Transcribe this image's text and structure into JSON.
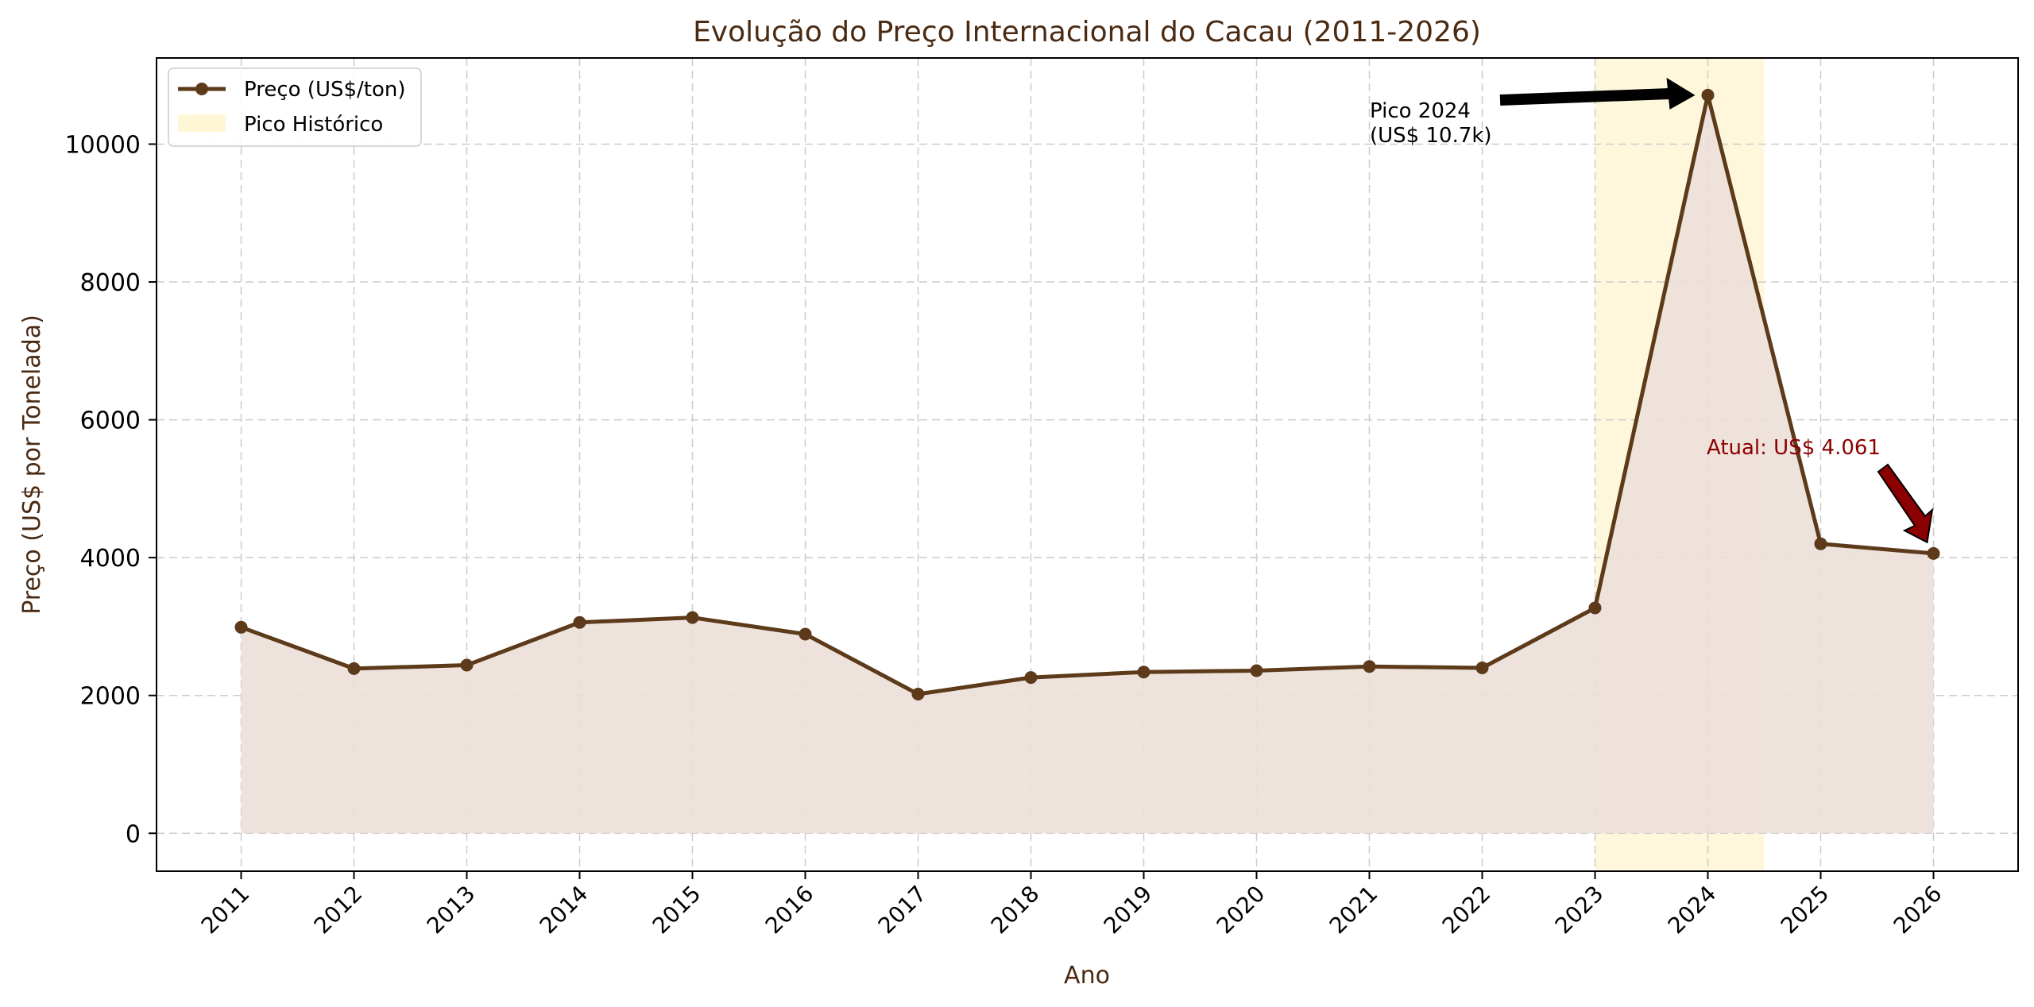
{
  "chart_data": {
    "type": "line",
    "title": "Evolução do Preço Internacional do Cacau (2011-2026)",
    "xlabel": "Ano",
    "ylabel": "Preço (US$ por Tonelada)",
    "x": [
      "2011",
      "2012",
      "2013",
      "2014",
      "2015",
      "2016",
      "2017",
      "2018",
      "2019",
      "2020",
      "2021",
      "2022",
      "2023",
      "2024",
      "2025",
      "2026"
    ],
    "series": [
      {
        "name": "Preço (US$/ton)",
        "values": [
          2990,
          2390,
          2440,
          3060,
          3130,
          2890,
          2020,
          2260,
          2340,
          2360,
          2420,
          2400,
          3270,
          10710,
          4200,
          4061
        ]
      }
    ],
    "ylim": [
      -550,
      11250
    ],
    "yticks": [
      0,
      2000,
      4000,
      6000,
      8000,
      10000
    ],
    "grid": true,
    "legend_position": "top-left",
    "legend": [
      "Preço (US$/ton)",
      "Pico Histórico"
    ],
    "highlight_band": {
      "label": "Pico Histórico",
      "x_start": 2023,
      "x_end": 2024.5
    },
    "annotations": [
      {
        "text_lines": [
          "Pico 2024",
          "(US$ 10.7k)"
        ],
        "target_x": "2024",
        "target_y": 10710,
        "color": "#000000"
      },
      {
        "text_lines": [
          "Atual: US$ 4.061"
        ],
        "target_x": "2026",
        "target_y": 4061,
        "color": "#8b0000"
      }
    ],
    "colors": {
      "line": "#5c3a1a",
      "fill": "#ecdfd9",
      "band": "#fff6d6",
      "grid": "#cccccc",
      "title": "#4a2a12",
      "annotation_red": "#8b0000"
    }
  }
}
